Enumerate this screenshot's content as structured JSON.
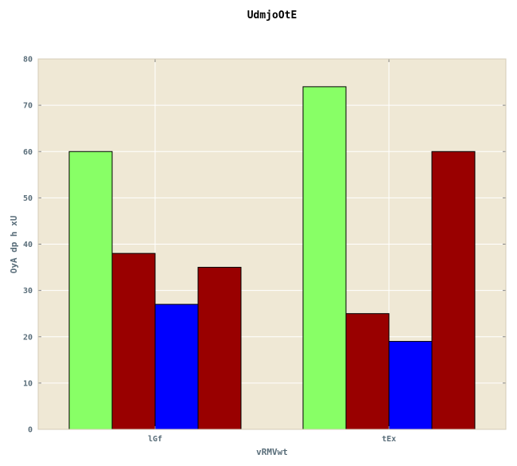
{
  "chart_data": {
    "type": "bar",
    "title": "UdmjoOtE",
    "xlabel": "vRMVwt",
    "ylabel": "OyA dp h xU",
    "categories": [
      "lGf",
      "tEx"
    ],
    "series": [
      {
        "values": [
          60,
          74
        ],
        "color": "#88ff66"
      },
      {
        "values": [
          38,
          25
        ],
        "color": "#990000"
      },
      {
        "values": [
          27,
          19
        ],
        "color": "#0000ff"
      },
      {
        "values": [
          35,
          60
        ],
        "color": "#990000"
      }
    ],
    "ylim": [
      0,
      80
    ],
    "yticks": [
      0,
      10,
      20,
      30,
      40,
      50,
      60,
      70,
      80
    ],
    "grid": true,
    "plot_background": "#efe8d5",
    "grid_color": "#ffffff"
  }
}
